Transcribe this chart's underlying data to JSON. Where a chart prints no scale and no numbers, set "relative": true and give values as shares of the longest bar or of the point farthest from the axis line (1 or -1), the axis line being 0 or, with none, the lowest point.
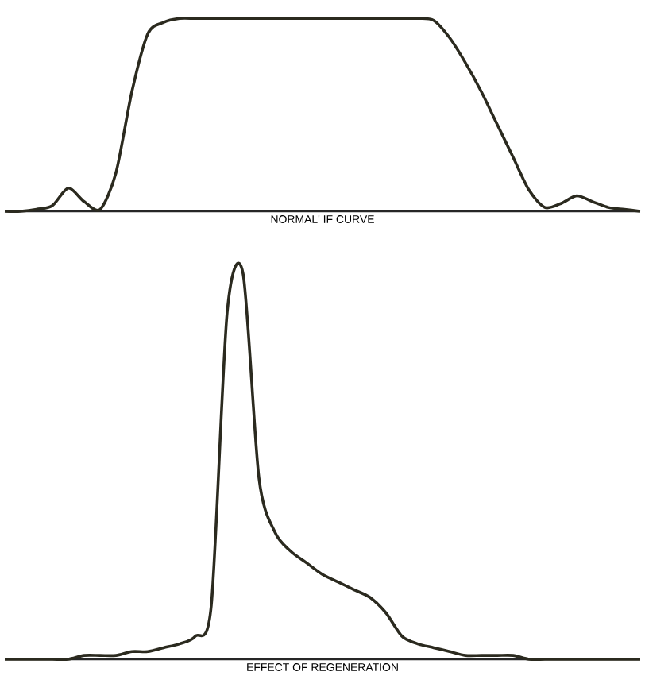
{
  "chart_data": [
    {
      "type": "line",
      "title": "NORMAL' IF CURVE",
      "relative": true,
      "color": "#2b2a1f",
      "categories": [
        null,
        null,
        null,
        null,
        null,
        null,
        null,
        null,
        null,
        null,
        null,
        null,
        null,
        null,
        null,
        null,
        null,
        null,
        null,
        null,
        null,
        null,
        null,
        null,
        null,
        null,
        null,
        null,
        null,
        null,
        null,
        null,
        null,
        null,
        null,
        null,
        null,
        null,
        null,
        null,
        null
      ],
      "values": [
        0,
        0,
        0.01,
        0.03,
        0.12,
        0.05,
        0.01,
        0.2,
        0.62,
        0.92,
        0.98,
        1,
        1,
        1,
        1,
        1,
        1,
        1,
        1,
        1,
        1,
        1,
        1,
        1,
        1,
        1,
        1,
        0.99,
        0.9,
        0.77,
        0.62,
        0.45,
        0.28,
        0.11,
        0.02,
        0.04,
        0.08,
        0.05,
        0.02,
        0.01,
        0
      ]
    },
    {
      "type": "line",
      "title": "EFFECT OF REGENERATION",
      "relative": true,
      "color": "#2b2a1f",
      "categories": [
        null,
        null,
        null,
        null,
        null,
        null,
        null,
        null,
        null,
        null,
        null,
        null,
        null,
        null,
        null,
        null,
        null,
        null,
        null,
        null,
        null,
        null,
        null,
        null,
        null,
        null,
        null,
        null,
        null,
        null,
        null,
        null,
        null,
        null,
        null,
        null,
        null,
        null,
        null,
        null,
        null
      ],
      "values": [
        0,
        0,
        0,
        0,
        0,
        0.01,
        0.01,
        0.01,
        0.02,
        0.02,
        0.03,
        0.04,
        0.06,
        0.14,
        0.9,
        1,
        0.47,
        0.33,
        0.28,
        0.25,
        0.22,
        0.2,
        0.18,
        0.16,
        0.12,
        0.06,
        0.04,
        0.03,
        0.02,
        0.01,
        0.01,
        0.01,
        0.01,
        0,
        0,
        0,
        0,
        0,
        0,
        0,
        0
      ]
    }
  ]
}
